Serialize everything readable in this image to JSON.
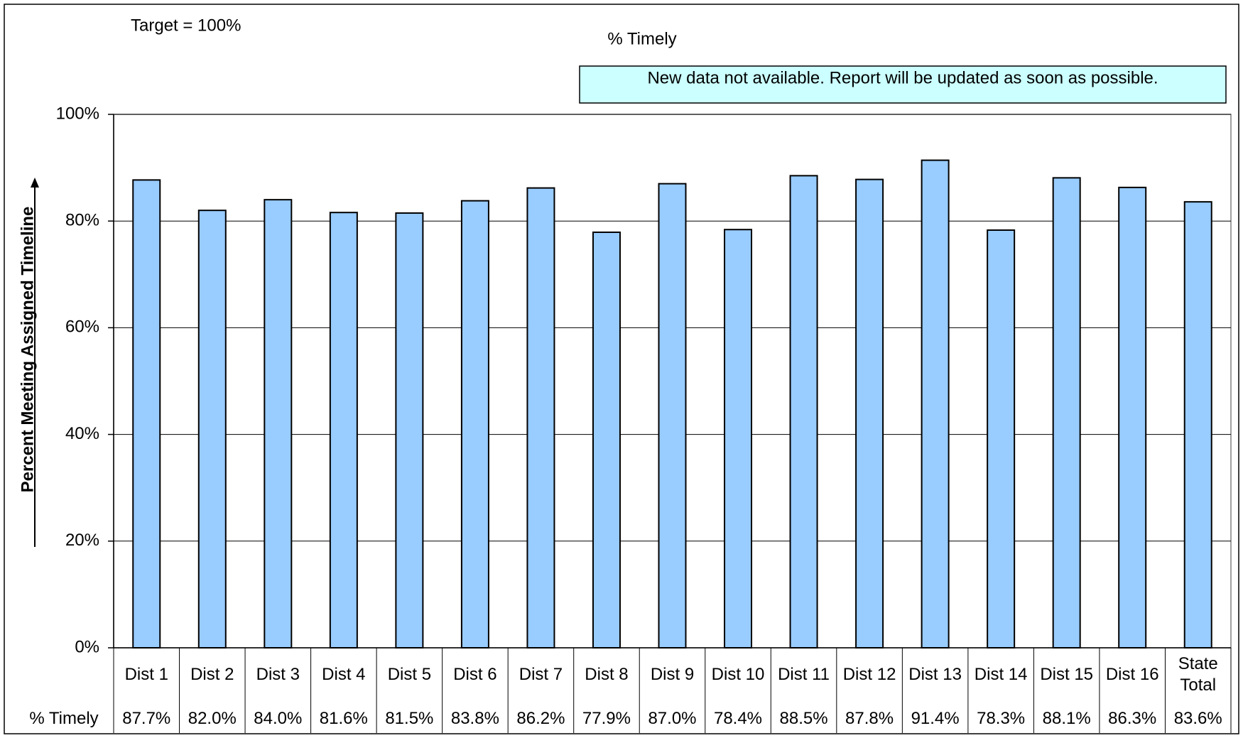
{
  "chart_data": {
    "type": "bar",
    "title": "% Timely",
    "annotation": "Target = 100%",
    "note": "New data not available. Report will be updated as soon as possible.",
    "y_label": "Percent Meeting Assigned Timeline",
    "table_row_label": "% Timely",
    "categories": [
      "Dist 1",
      "Dist 2",
      "Dist 3",
      "Dist 4",
      "Dist 5",
      "Dist 6",
      "Dist 7",
      "Dist 8",
      "Dist 9",
      "Dist 10",
      "Dist 11",
      "Dist 12",
      "Dist 13",
      "Dist 14",
      "Dist 15",
      "Dist 16",
      "State Total"
    ],
    "values": [
      87.7,
      82.0,
      84.0,
      81.6,
      81.5,
      83.8,
      86.2,
      77.9,
      87.0,
      78.4,
      88.5,
      87.8,
      91.4,
      78.3,
      88.1,
      86.3,
      83.6
    ],
    "value_labels": [
      "87.7%",
      "82.0%",
      "84.0%",
      "81.6%",
      "81.5%",
      "83.8%",
      "86.2%",
      "77.9%",
      "87.0%",
      "78.4%",
      "88.5%",
      "87.8%",
      "91.4%",
      "78.3%",
      "88.1%",
      "86.3%",
      "83.6%"
    ],
    "color": "#99ccff",
    "ylim": [
      0,
      100
    ],
    "yticks": [
      {
        "value": 0,
        "label": "0%"
      },
      {
        "value": 20,
        "label": "20%"
      },
      {
        "value": 40,
        "label": "40%"
      },
      {
        "value": 60,
        "label": "60%"
      },
      {
        "value": 80,
        "label": "80%"
      },
      {
        "value": 100,
        "label": "100%"
      }
    ],
    "grid": true
  }
}
